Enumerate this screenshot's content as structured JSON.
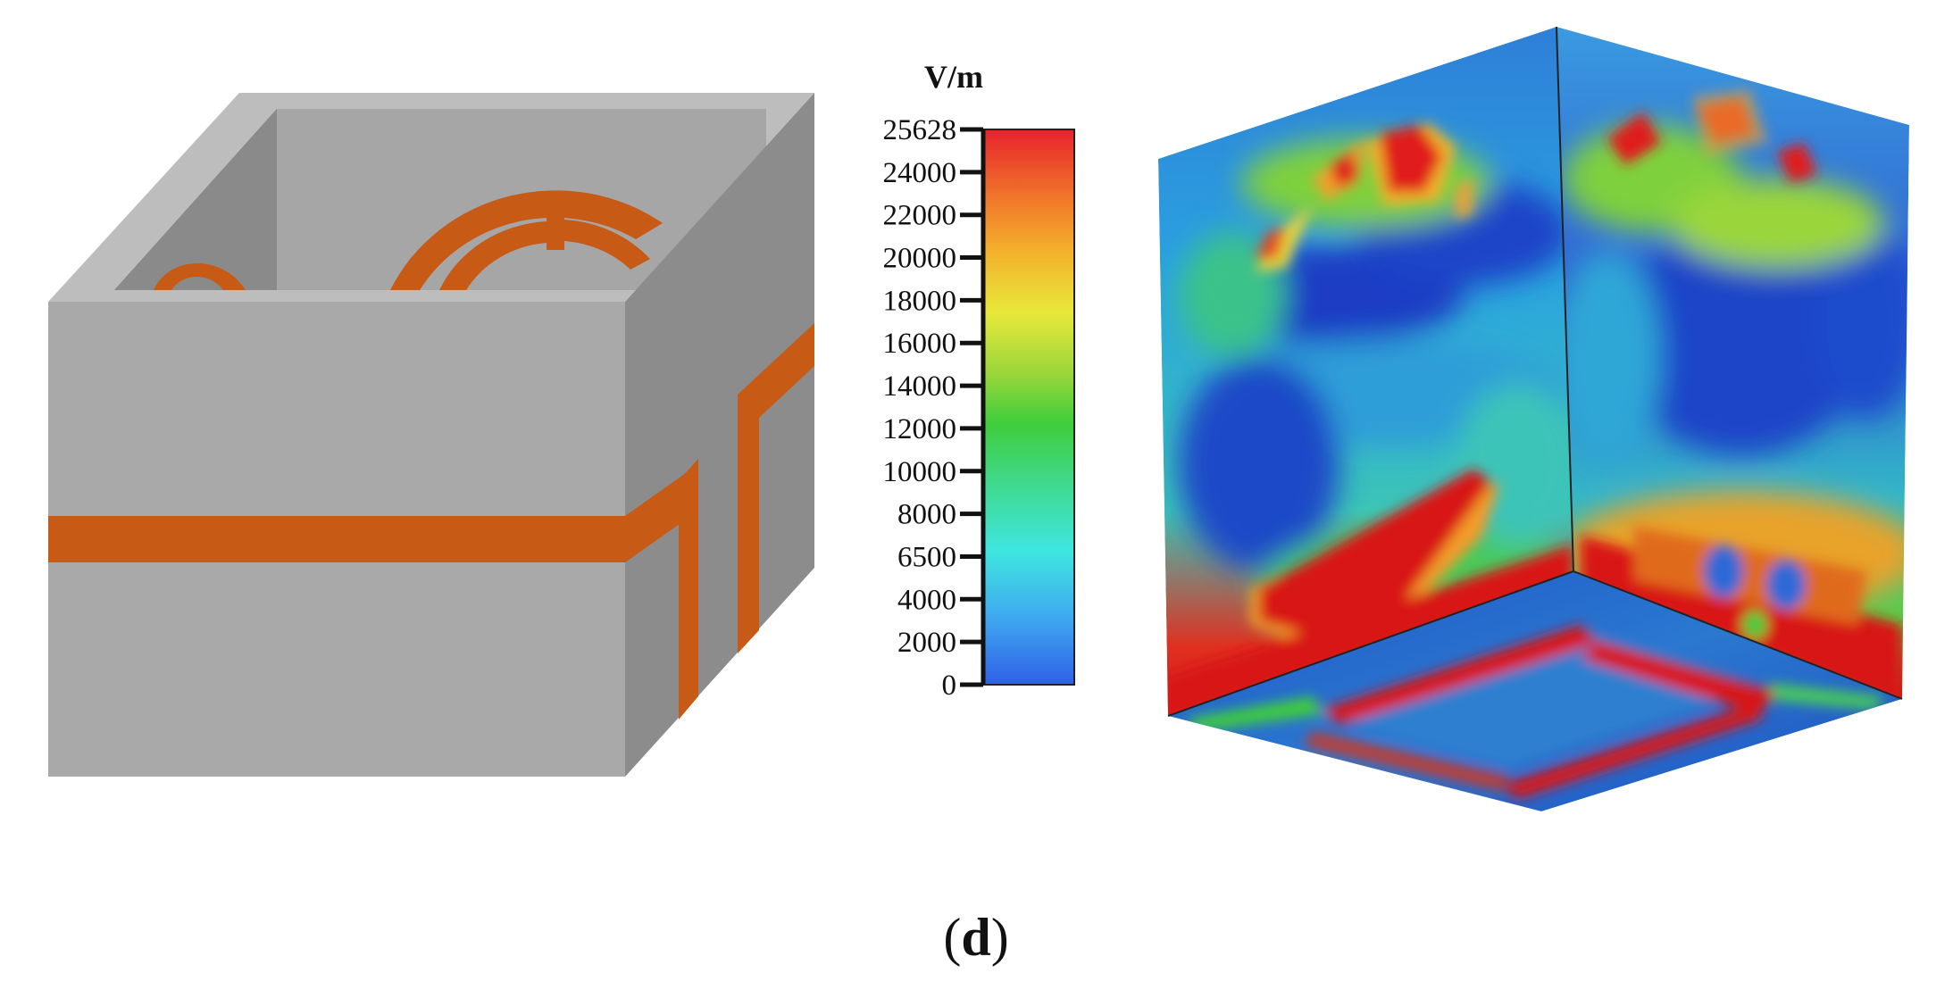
{
  "figure": {
    "caption_open": "(",
    "caption_letter": "d",
    "caption_close": ")"
  },
  "colorbar": {
    "unit": "V/m",
    "max": 25628,
    "min": 0,
    "ticks": [
      "25628",
      "24000",
      "22000",
      "20000",
      "18000",
      "16000",
      "14000",
      "12000",
      "10000",
      "8000",
      "6500",
      "4000",
      "2000",
      "0"
    ],
    "colors": [
      "#e8232d",
      "#f0742a",
      "#f3b12c",
      "#e8e83a",
      "#9ad63a",
      "#3fcd3c",
      "#3fd98f",
      "#3fe6e0",
      "#3fa8f0",
      "#3060e8"
    ]
  },
  "colors": {
    "box_face": "#a9a9a9",
    "box_side": "#8a8a8a",
    "box_rim": "#bcbcbc",
    "box_inner": "#7f7f7f",
    "copper": "#c75a14",
    "field_low": "#1b3fd0",
    "field_high": "#e3141b"
  }
}
